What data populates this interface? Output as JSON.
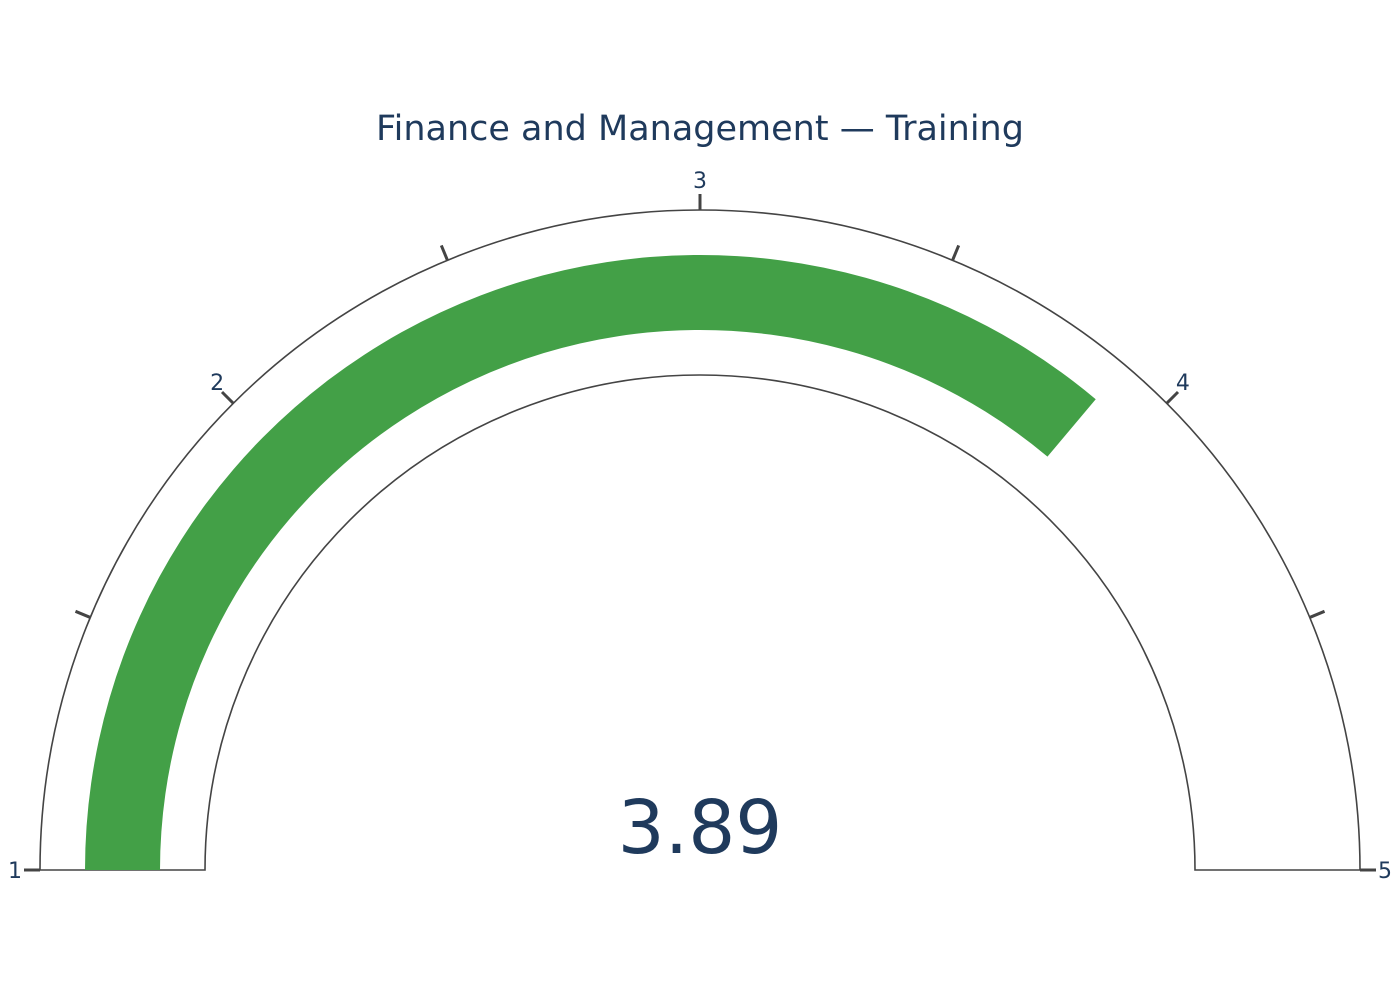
{
  "chart_data": {
    "type": "gauge",
    "title": "Finance and Management — Training",
    "value": 3.89,
    "value_label": "3.89",
    "range": [
      1,
      5
    ],
    "major_ticks": [
      1,
      2,
      3,
      4,
      5
    ],
    "tick_labels": [
      "1",
      "2",
      "3",
      "4",
      "5"
    ],
    "minor_ticks": [
      1.5,
      2.5,
      3.5,
      4.5
    ],
    "colors": {
      "bar": "#43a047",
      "text": "#1f3a5c",
      "outline": "#444444"
    }
  }
}
